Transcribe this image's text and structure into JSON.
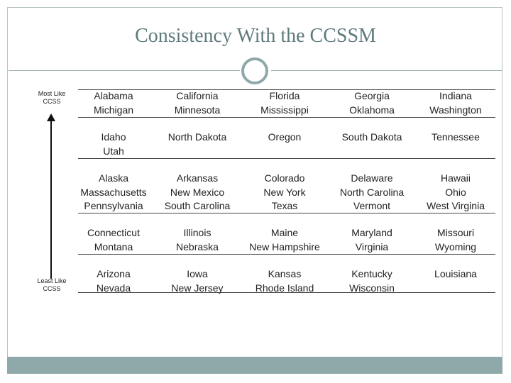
{
  "slide": {
    "title": "Consistency With the CCSSM",
    "axis_top_label": "Most Like CCSS",
    "axis_bottom_label": "Least Like CCSS",
    "accent_color": "#8fa9aa",
    "title_color": "#5f7a7c"
  },
  "table": {
    "rows": [
      [
        [
          "Alabama",
          "Michigan"
        ],
        [
          "California",
          "Minnesota"
        ],
        [
          "Florida",
          "Mississippi"
        ],
        [
          "Georgia",
          "Oklahoma"
        ],
        [
          "Indiana",
          "Washington"
        ]
      ],
      [
        [
          "Idaho",
          "Utah"
        ],
        [
          "North Dakota"
        ],
        [
          "Oregon"
        ],
        [
          "South Dakota"
        ],
        [
          "Tennessee"
        ]
      ],
      [
        [
          "Alaska",
          "Massachusetts",
          "Pennsylvania"
        ],
        [
          "Arkansas",
          "New Mexico",
          "South Carolina"
        ],
        [
          "Colorado",
          "New York",
          "Texas"
        ],
        [
          "Delaware",
          "North Carolina",
          "Vermont"
        ],
        [
          "Hawaii",
          "Ohio",
          "West Virginia"
        ]
      ],
      [
        [
          "Connecticut",
          "Montana"
        ],
        [
          "Illinois",
          "Nebraska"
        ],
        [
          "Maine",
          "New Hampshire"
        ],
        [
          "Maryland",
          "Virginia"
        ],
        [
          "Missouri",
          "Wyoming"
        ]
      ],
      [
        [
          "Arizona",
          "Nevada"
        ],
        [
          "Iowa",
          "New Jersey"
        ],
        [
          "Kansas",
          "Rhode Island"
        ],
        [
          "Kentucky",
          "Wisconsin"
        ],
        [
          "Louisiana"
        ]
      ]
    ]
  }
}
